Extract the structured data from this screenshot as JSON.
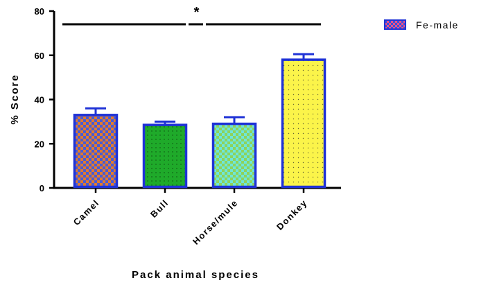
{
  "chart_data": {
    "type": "bar",
    "title": "",
    "xlabel": "Pack animal species",
    "ylabel": "% Score",
    "ylim": [
      0,
      80
    ],
    "yticks": [
      0,
      20,
      40,
      60,
      80
    ],
    "categories": [
      "Camel",
      "Bull",
      "Horse/mule",
      "Donkey"
    ],
    "series": [
      {
        "name": "Fe-male",
        "values": [
          33,
          28.5,
          29,
          58
        ],
        "errors": [
          3,
          1.5,
          3,
          2.5
        ]
      }
    ],
    "bar_fills": [
      "checker-orange-blue",
      "dots-green",
      "checker-cyan-green",
      "dots-yellow"
    ],
    "colors": {
      "bar_border": "#1f32d6",
      "camel_a": "#e07b2f",
      "camel_b": "#4a5bd4",
      "bull": "#1faa2a",
      "horse_a": "#6fe6d8",
      "horse_b": "#8ed35c",
      "donkey": "#fbf44a",
      "legend_a": "#e8508a",
      "legend_b": "#4050d8"
    },
    "significance": {
      "label": "*",
      "from_category": "Camel",
      "to_category": "Donkey"
    },
    "legend": {
      "position": "top-right"
    },
    "grid": false
  }
}
